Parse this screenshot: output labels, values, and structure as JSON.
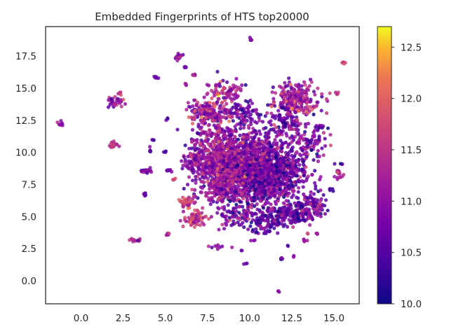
{
  "chart_data": {
    "type": "scatter",
    "title": "Embedded Fingerprints of HTS top20000",
    "xlabel": "",
    "ylabel": "",
    "xlim": [
      -2.1,
      16.5
    ],
    "ylim": [
      -1.8,
      19.8
    ],
    "xticks": [
      0.0,
      2.5,
      5.0,
      7.5,
      10.0,
      12.5,
      15.0
    ],
    "xtick_labels": [
      "0.0",
      "2.5",
      "5.0",
      "7.5",
      "10.0",
      "12.5",
      "15.0"
    ],
    "yticks": [
      0.0,
      2.5,
      5.0,
      7.5,
      10.0,
      12.5,
      15.0,
      17.5
    ],
    "ytick_labels": [
      "0.0",
      "2.5",
      "5.0",
      "7.5",
      "10.0",
      "12.5",
      "15.0",
      "17.5"
    ],
    "grid": false,
    "colormap": "plasma",
    "colorbar": {
      "range": [
        10.0,
        12.7
      ],
      "ticks": [
        10.0,
        10.5,
        11.0,
        11.5,
        12.0,
        12.5
      ],
      "tick_labels": [
        "10.0",
        "10.5",
        "11.0",
        "11.5",
        "12.0",
        "12.5"
      ]
    },
    "clusters": [
      {
        "x": 9.8,
        "y": 8.8,
        "sx": 1.4,
        "sy": 1.5,
        "n": 1500,
        "value": 10.9,
        "spread": 0.45
      },
      {
        "x": 8.4,
        "y": 9.6,
        "sx": 0.9,
        "sy": 1.1,
        "n": 400,
        "value": 11.1,
        "spread": 0.4
      },
      {
        "x": 11.6,
        "y": 8.3,
        "sx": 0.9,
        "sy": 1.0,
        "n": 380,
        "value": 10.7,
        "spread": 0.4
      },
      {
        "x": 7.6,
        "y": 13.0,
        "sx": 0.6,
        "sy": 0.45,
        "n": 160,
        "value": 11.1,
        "spread": 0.5
      },
      {
        "x": 8.6,
        "y": 14.7,
        "sx": 0.5,
        "sy": 0.5,
        "n": 90,
        "value": 11.3,
        "spread": 0.4
      },
      {
        "x": 9.6,
        "y": 13.2,
        "sx": 0.4,
        "sy": 0.5,
        "n": 70,
        "value": 10.8,
        "spread": 0.4
      },
      {
        "x": 12.8,
        "y": 14.2,
        "sx": 0.65,
        "sy": 0.55,
        "n": 220,
        "value": 11.2,
        "spread": 0.45
      },
      {
        "x": 12.2,
        "y": 12.3,
        "sx": 0.5,
        "sy": 0.5,
        "n": 90,
        "value": 10.8,
        "spread": 0.4
      },
      {
        "x": 13.4,
        "y": 10.6,
        "sx": 0.5,
        "sy": 0.6,
        "n": 80,
        "value": 10.9,
        "spread": 0.4
      },
      {
        "x": 6.8,
        "y": 4.8,
        "sx": 0.35,
        "sy": 0.35,
        "n": 70,
        "value": 11.5,
        "spread": 0.35
      },
      {
        "x": 6.2,
        "y": 6.1,
        "sx": 0.25,
        "sy": 0.2,
        "n": 40,
        "value": 11.7,
        "spread": 0.3
      },
      {
        "x": 12.5,
        "y": 5.2,
        "sx": 0.8,
        "sy": 0.45,
        "n": 200,
        "value": 10.7,
        "spread": 0.4
      },
      {
        "x": 13.8,
        "y": 6.0,
        "sx": 0.4,
        "sy": 0.4,
        "n": 60,
        "value": 10.8,
        "spread": 0.4
      },
      {
        "x": 9.3,
        "y": 5.0,
        "sx": 0.6,
        "sy": 0.5,
        "n": 80,
        "value": 10.8,
        "spread": 0.4
      },
      {
        "x": 11.0,
        "y": 4.5,
        "sx": 0.5,
        "sy": 0.4,
        "n": 70,
        "value": 10.6,
        "spread": 0.35
      },
      {
        "x": 8.0,
        "y": 7.0,
        "sx": 0.4,
        "sy": 0.4,
        "n": 60,
        "value": 11.1,
        "spread": 0.4
      },
      {
        "x": 6.7,
        "y": 9.4,
        "sx": 0.35,
        "sy": 0.6,
        "n": 60,
        "value": 11.0,
        "spread": 0.4
      },
      {
        "x": 14.1,
        "y": 11.9,
        "sx": 0.15,
        "sy": 0.1,
        "n": 12,
        "value": 10.6,
        "spread": 0.3
      },
      {
        "x": 15.3,
        "y": 8.3,
        "sx": 0.2,
        "sy": 0.15,
        "n": 15,
        "value": 11.2,
        "spread": 0.3
      },
      {
        "x": 14.9,
        "y": 7.1,
        "sx": 0.1,
        "sy": 0.08,
        "n": 5,
        "value": 10.5,
        "spread": 0.2
      },
      {
        "x": 15.5,
        "y": 9.1,
        "sx": 0.06,
        "sy": 0.06,
        "n": 3,
        "value": 10.4,
        "spread": 0.2
      },
      {
        "x": 15.2,
        "y": 14.5,
        "sx": 0.06,
        "sy": 0.06,
        "n": 5,
        "value": 11.6,
        "spread": 0.2
      },
      {
        "x": 15.6,
        "y": 17.0,
        "sx": 0.06,
        "sy": 0.06,
        "n": 5,
        "value": 11.8,
        "spread": 0.2
      },
      {
        "x": 10.05,
        "y": 18.8,
        "sx": 0.06,
        "sy": 0.06,
        "n": 5,
        "value": 10.9,
        "spread": 0.2
      },
      {
        "x": 5.8,
        "y": 17.5,
        "sx": 0.1,
        "sy": 0.15,
        "n": 14,
        "value": 11.0,
        "spread": 0.3
      },
      {
        "x": 6.3,
        "y": 16.6,
        "sx": 0.06,
        "sy": 0.06,
        "n": 4,
        "value": 10.8,
        "spread": 0.2
      },
      {
        "x": 6.7,
        "y": 16.0,
        "sx": 0.06,
        "sy": 0.06,
        "n": 4,
        "value": 10.9,
        "spread": 0.2
      },
      {
        "x": 4.4,
        "y": 15.8,
        "sx": 0.08,
        "sy": 0.06,
        "n": 5,
        "value": 10.6,
        "spread": 0.2
      },
      {
        "x": 6.2,
        "y": 15.3,
        "sx": 0.05,
        "sy": 0.05,
        "n": 3,
        "value": 11.0,
        "spread": 0.2
      },
      {
        "x": 2.1,
        "y": 13.9,
        "sx": 0.25,
        "sy": 0.25,
        "n": 30,
        "value": 11.0,
        "spread": 0.4
      },
      {
        "x": 2.3,
        "y": 14.6,
        "sx": 0.1,
        "sy": 0.08,
        "n": 6,
        "value": 11.7,
        "spread": 0.2
      },
      {
        "x": -1.2,
        "y": 12.2,
        "sx": 0.12,
        "sy": 0.1,
        "n": 8,
        "value": 11.1,
        "spread": 0.2
      },
      {
        "x": 2.0,
        "y": 10.6,
        "sx": 0.2,
        "sy": 0.15,
        "n": 16,
        "value": 11.5,
        "spread": 0.3
      },
      {
        "x": 3.8,
        "y": 8.5,
        "sx": 0.22,
        "sy": 0.12,
        "n": 14,
        "value": 10.9,
        "spread": 0.3
      },
      {
        "x": 3.8,
        "y": 6.7,
        "sx": 0.12,
        "sy": 0.1,
        "n": 6,
        "value": 10.7,
        "spread": 0.2
      },
      {
        "x": 4.1,
        "y": 10.1,
        "sx": 0.1,
        "sy": 0.08,
        "n": 5,
        "value": 10.6,
        "spread": 0.2
      },
      {
        "x": 5.2,
        "y": 8.6,
        "sx": 0.15,
        "sy": 0.06,
        "n": 8,
        "value": 10.7,
        "spread": 0.2
      },
      {
        "x": 5.0,
        "y": 10.1,
        "sx": 0.06,
        "sy": 0.06,
        "n": 3,
        "value": 10.4,
        "spread": 0.2
      },
      {
        "x": 4.3,
        "y": 11.0,
        "sx": 0.05,
        "sy": 0.05,
        "n": 3,
        "value": 10.5,
        "spread": 0.2
      },
      {
        "x": 5.5,
        "y": 7.9,
        "sx": 0.1,
        "sy": 0.06,
        "n": 4,
        "value": 11.5,
        "spread": 0.2
      },
      {
        "x": 5.1,
        "y": 12.6,
        "sx": 0.05,
        "sy": 0.05,
        "n": 3,
        "value": 10.5,
        "spread": 0.2
      },
      {
        "x": 5.1,
        "y": 3.6,
        "sx": 0.08,
        "sy": 0.06,
        "n": 5,
        "value": 11.2,
        "spread": 0.2
      },
      {
        "x": 3.1,
        "y": 3.2,
        "sx": 0.18,
        "sy": 0.06,
        "n": 8,
        "value": 11.3,
        "spread": 0.2
      },
      {
        "x": 3.4,
        "y": 3.2,
        "sx": 0.06,
        "sy": 0.06,
        "n": 3,
        "value": 10.8,
        "spread": 0.2
      },
      {
        "x": 8.1,
        "y": 2.6,
        "sx": 0.2,
        "sy": 0.1,
        "n": 8,
        "value": 11.0,
        "spread": 0.2
      },
      {
        "x": 9.5,
        "y": 2.4,
        "sx": 0.05,
        "sy": 0.05,
        "n": 2,
        "value": 10.6,
        "spread": 0.2
      },
      {
        "x": 10.2,
        "y": 3.1,
        "sx": 0.08,
        "sy": 0.06,
        "n": 3,
        "value": 10.8,
        "spread": 0.2
      },
      {
        "x": 9.8,
        "y": 1.3,
        "sx": 0.06,
        "sy": 0.06,
        "n": 3,
        "value": 10.7,
        "spread": 0.2
      },
      {
        "x": 11.9,
        "y": 1.7,
        "sx": 0.06,
        "sy": 0.1,
        "n": 4,
        "value": 10.5,
        "spread": 0.2
      },
      {
        "x": 12.3,
        "y": 2.7,
        "sx": 0.05,
        "sy": 0.05,
        "n": 2,
        "value": 10.4,
        "spread": 0.2
      },
      {
        "x": 12.6,
        "y": 1.9,
        "sx": 0.05,
        "sy": 0.05,
        "n": 2,
        "value": 11.0,
        "spread": 0.2
      },
      {
        "x": 11.7,
        "y": -0.8,
        "sx": 0.05,
        "sy": 0.05,
        "n": 3,
        "value": 11.0,
        "spread": 0.2
      },
      {
        "x": 13.3,
        "y": 3.1,
        "sx": 0.1,
        "sy": 0.1,
        "n": 5,
        "value": 10.9,
        "spread": 0.2
      },
      {
        "x": 13.5,
        "y": 3.7,
        "sx": 0.05,
        "sy": 0.05,
        "n": 2,
        "value": 11.8,
        "spread": 0.2
      },
      {
        "x": 14.0,
        "y": 3.7,
        "sx": 0.06,
        "sy": 0.05,
        "n": 3,
        "value": 11.2,
        "spread": 0.2
      }
    ]
  }
}
